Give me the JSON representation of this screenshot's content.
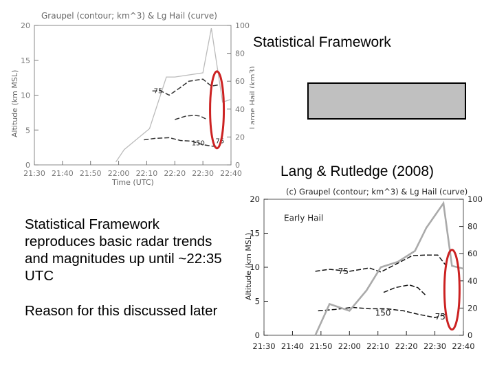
{
  "slide": {
    "heading_top": "Statistical Framework",
    "heading_citation": "Lang & Rutledge (2008)",
    "summary": "Statistical Framework reproduces basic radar trends and magnitudes up until ~22:35 UTC",
    "note": "Reason for this discussed later"
  },
  "chart_data": [
    {
      "type": "line",
      "title": "Graupel (contour; km^3) & Lg Hail (curve)",
      "xlabel": "Time (UTC)",
      "ylabel": "Altitude (km MSL)",
      "y2label": "Large Hail (km3)",
      "x": [
        "21:30",
        "21:40",
        "21:50",
        "22:00",
        "22:10",
        "22:20",
        "22:30",
        "22:40"
      ],
      "xlim": [
        0,
        70
      ],
      "ylim": [
        0,
        20
      ],
      "y2lim": [
        0,
        100
      ],
      "y_ticks": [
        0,
        5,
        10,
        15,
        20
      ],
      "y2_ticks": [
        0,
        20,
        40,
        60,
        80,
        100
      ],
      "series": [
        {
          "name": "Lg Hail",
          "axis": "y2",
          "color": "#bbbbbb",
          "points": [
            [
              29,
              2
            ],
            [
              32,
              11
            ],
            [
              35,
              16
            ],
            [
              41,
              26
            ],
            [
              47,
              63
            ],
            [
              50,
              63
            ],
            [
              60,
              66
            ],
            [
              63,
              98
            ],
            [
              67,
              45
            ],
            [
              70,
              47
            ]
          ]
        }
      ],
      "contours": [
        {
          "label": "75",
          "color": "#333333",
          "points": [
            [
              42,
              10.6
            ],
            [
              45,
              10.6
            ],
            [
              48,
              10.0
            ],
            [
              52,
              11.1
            ],
            [
              55,
              12.0
            ],
            [
              60,
              12.3
            ],
            [
              63,
              11.3
            ],
            [
              66,
              11.5
            ]
          ]
        },
        {
          "label": "150",
          "color": "#333333",
          "points": [
            [
              39,
              3.6
            ],
            [
              43,
              3.8
            ],
            [
              48,
              3.9
            ],
            [
              52,
              3.5
            ],
            [
              56,
              3.4
            ],
            [
              60,
              2.9
            ],
            [
              63,
              2.7
            ],
            [
              66,
              2.6
            ]
          ]
        },
        {
          "label": "",
          "color": "#333333",
          "points": [
            [
              50,
              6.5
            ],
            [
              54,
              7.0
            ],
            [
              57,
              7.1
            ],
            [
              59,
              7.0
            ],
            [
              61,
              6.6
            ]
          ]
        }
      ],
      "highlight": {
        "shape": "ellipse",
        "color": "#cc2222",
        "center": [
          65,
          7.9
        ]
      },
      "annotations": [
        {
          "text": "75",
          "at": [
            42.5,
            10.3
          ]
        },
        {
          "text": "150",
          "at": [
            56,
            2.8
          ]
        },
        {
          "text": "75",
          "at": [
            64.5,
            3.1
          ]
        }
      ],
      "grid": false,
      "legend": "none"
    },
    {
      "type": "line",
      "title": "(c) Graupel (contour; km^3) & Lg Hail (curve)",
      "xlabel": "",
      "ylabel": "Altitude (km MSL)",
      "y2label": "",
      "x": [
        "21:30",
        "21:40",
        "21:50",
        "22:00",
        "22:10",
        "22:20",
        "22:30",
        "22:40"
      ],
      "xlim": [
        0,
        70
      ],
      "ylim": [
        0,
        20
      ],
      "y2lim": [
        0,
        100
      ],
      "y_ticks": [
        0,
        5,
        10,
        15,
        20
      ],
      "y2_ticks": [
        0,
        20,
        40,
        60,
        80,
        100
      ],
      "series": [
        {
          "name": "Lg Hail",
          "axis": "y2",
          "color": "#aaaaaa",
          "points": [
            [
              18,
              0
            ],
            [
              23,
              23
            ],
            [
              30,
              18
            ],
            [
              36,
              33
            ],
            [
              41,
              50
            ],
            [
              47,
              54
            ],
            [
              53,
              62
            ],
            [
              57,
              79
            ],
            [
              63,
              97
            ],
            [
              66,
              51
            ],
            [
              70,
              49
            ]
          ]
        }
      ],
      "contours": [
        {
          "label": "75",
          "color": "#111111",
          "points": [
            [
              18,
              9.4
            ],
            [
              23,
              9.7
            ],
            [
              30,
              9.4
            ],
            [
              37,
              9.9
            ],
            [
              41,
              9.3
            ],
            [
              47,
              10.6
            ],
            [
              52,
              11.7
            ],
            [
              57,
              11.8
            ],
            [
              61,
              11.8
            ],
            [
              64,
              10.2
            ]
          ]
        },
        {
          "label": "150",
          "color": "#111111",
          "points": [
            [
              19,
              3.6
            ],
            [
              25,
              3.8
            ],
            [
              31,
              4.1
            ],
            [
              37,
              3.9
            ],
            [
              43,
              3.9
            ],
            [
              49,
              3.6
            ],
            [
              54,
              3.1
            ],
            [
              60,
              2.6
            ],
            [
              64,
              3.1
            ]
          ]
        },
        {
          "label": "",
          "color": "#111111",
          "points": [
            [
              42,
              6.3
            ],
            [
              46,
              7.0
            ],
            [
              51,
              7.4
            ],
            [
              54,
              7.0
            ],
            [
              57,
              5.8
            ]
          ]
        }
      ],
      "highlight": {
        "shape": "ellipse",
        "color": "#cc2222",
        "center": [
          66,
          6.7
        ]
      },
      "annotations": [
        {
          "text": "Early Hail",
          "at": [
            7,
            16.8
          ]
        },
        {
          "text": "75",
          "at": [
            26,
            9.0
          ]
        },
        {
          "text": "150",
          "at": [
            39,
            2.9
          ]
        },
        {
          "text": "75",
          "at": [
            60,
            2.3
          ]
        }
      ],
      "grid": false,
      "legend": "none"
    }
  ]
}
